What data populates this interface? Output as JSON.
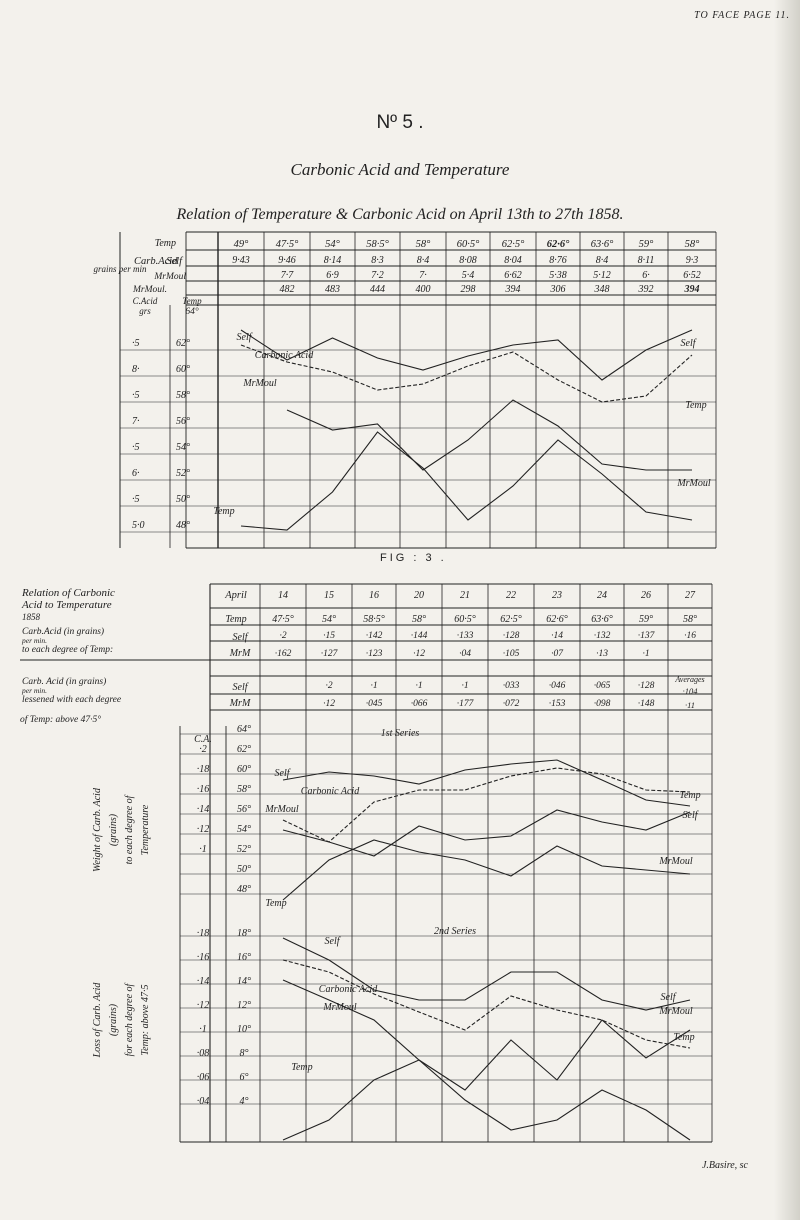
{
  "header_note": "TO FACE PAGE 11.",
  "plate_no": "Nº 5 .",
  "plate_title": "Carbonic Acid and Temperature",
  "fig1_caption": "Relation of Temperature & Carbonic Acid on April 13th to 27th 1858.",
  "fig1": {
    "row_labels": {
      "temp": "Temp",
      "carb_acid": "Carb.Acid",
      "grains_per_min": "grains per min",
      "self": "Self",
      "mr_moul": "MrMoul",
      "mr_moul_row": "MrMoul.",
      "c_acid": "C.Acid",
      "c_acid_unit": "grs",
      "temp_axis": "Temp",
      "temp_axis_top": "64°"
    },
    "temps": [
      "49°",
      "47·5°",
      "54°",
      "58·5°",
      "58°",
      "60·5°",
      "62·5°",
      "62·6°",
      "63·6°",
      "59°",
      "58°"
    ],
    "self_values": [
      "9·43",
      "9·46",
      "8·14",
      "8·3",
      "8·4",
      "8·08",
      "8·04",
      "8·76",
      "8·4",
      "8·11",
      "9·3"
    ],
    "moul_values": [
      "",
      "7·7",
      "6·9",
      "7·2",
      "7·",
      "5·4",
      "6·62",
      "5·38",
      "5·12",
      "6·",
      "6·52"
    ],
    "moul_mean": [
      "",
      "482",
      "483",
      "444",
      "400",
      "298",
      "394",
      "306",
      "348",
      "392",
      "394"
    ],
    "axis_left": [
      "·5",
      "8·",
      "·5",
      "7·",
      "·5",
      "6·",
      "·5",
      "5·0"
    ],
    "axis_right": [
      "62°",
      "60°",
      "58°",
      "56°",
      "54°",
      "52°",
      "50°",
      "48°"
    ],
    "curve_labels": [
      "Self",
      "Carbonic Acid",
      "MrMoul",
      "Temp",
      "Self",
      "Temp",
      "MrMoul"
    ]
  },
  "fig3_label": "FIG : 3 .",
  "fig3": {
    "title_lines": [
      "Relation of Carbonic",
      "Acid to Temperature",
      "1858"
    ],
    "row1_label_lines": [
      "Carb.Acid (in grains)",
      "per min.",
      "to each degree of Temp:"
    ],
    "row2_label_lines": [
      "Carb. Acid (in grains)",
      "per min.",
      "lessened with each degree"
    ],
    "row2_suffix": "of Temp: above 47·5°",
    "april": "April",
    "temp": "Temp",
    "self": "Self",
    "mr_m": "MrM",
    "temp_cell": "Temp",
    "averages": "Averages",
    "dates": [
      "14",
      "15",
      "16",
      "20",
      "21",
      "22",
      "23",
      "24",
      "26",
      "27"
    ],
    "temps": [
      "47·5°",
      "54°",
      "58·5°",
      "58°",
      "60·5°",
      "62·5°",
      "62·6°",
      "63·6°",
      "59°",
      "58°"
    ],
    "row1_self": [
      "·2",
      "·15",
      "·142",
      "·144",
      "·133",
      "·128",
      "·14",
      "·132",
      "·137",
      "·16"
    ],
    "row1_moul": [
      "·162",
      "·127",
      "·123",
      "·12",
      "·04",
      "·105",
      "·07",
      "·13",
      "·1",
      ""
    ],
    "row2_self": [
      "",
      "·2",
      "·1",
      "·1",
      "·1",
      "·033",
      "·046",
      "·065",
      "·128",
      ""
    ],
    "row2_moul": [
      "",
      "·12",
      "·045",
      "·066",
      "·177",
      "·072",
      "·153",
      "·098",
      "·148",
      ""
    ],
    "averages_values": [
      "·104",
      "·11"
    ],
    "upper_axis_side_lines": [
      "Weight of Carb. Acid",
      "(grains)",
      "to each degree of",
      "Temperature"
    ],
    "upper_c_a": "C.A.",
    "upper_axis_ca": [
      "·2",
      "·18",
      "·16",
      "·14",
      "·12",
      "·1"
    ],
    "upper_axis_temp": [
      "64°",
      "62°",
      "60°",
      "58°",
      "56°",
      "54°",
      "52°",
      "50°",
      "48°"
    ],
    "lower_axis_side_lines": [
      "Loss of Carb. Acid",
      "(grains)",
      "for each degree of",
      "Temp: above 47·5"
    ],
    "lower_axis_ca": [
      "·18",
      "·16",
      "·14",
      "·12",
      "·1",
      "·08",
      "·06",
      "·04"
    ],
    "lower_axis_temp": [
      "18°",
      "16°",
      "14°",
      "12°",
      "10°",
      "8°",
      "6°",
      "4°"
    ],
    "series_1": "1st Series",
    "series_2": "2nd Series",
    "upper_curve_labels": [
      "Self",
      "Carbonic Acid",
      "MrMoul",
      "Temp",
      "Self",
      "MrMoul",
      "Temp"
    ],
    "lower_curve_labels": [
      "Self",
      "Carbonic Acid",
      "MrMoul",
      "Self",
      "MrMoul",
      "Temp",
      "Temp"
    ]
  },
  "engraver": "J.Basire, sc",
  "footnote_mark": "·"
}
